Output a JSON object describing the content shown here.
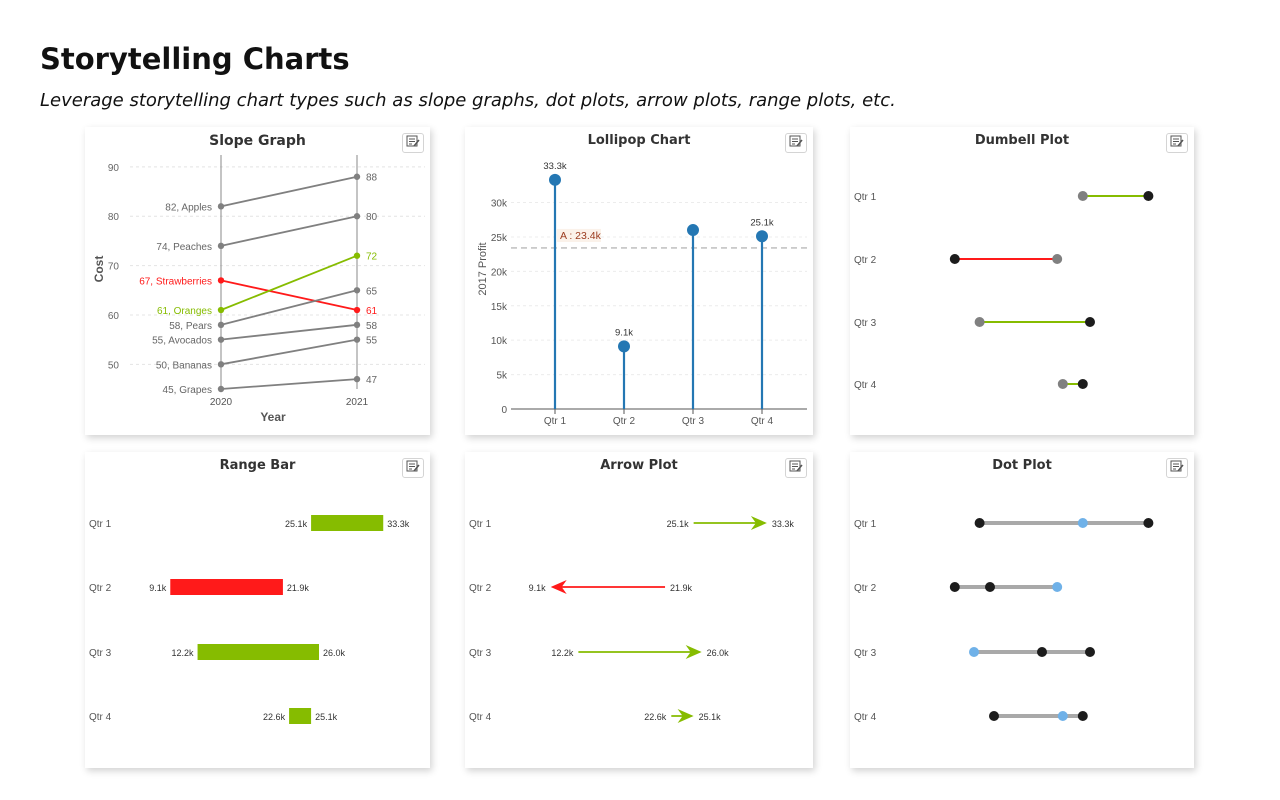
{
  "header": {
    "title": "Storytelling Charts",
    "subtitle": "Leverage storytelling chart types such as slope graphs, dot plots, arrow plots, range plots, etc."
  },
  "colors": {
    "gray": "#808080",
    "green": "#86bc00",
    "red": "#ff1a1a",
    "blue": "#2477b3",
    "dark": "#1c1c1c",
    "lightblue": "#6fb1e8",
    "track": "#a9a9a9"
  },
  "icons": {
    "menu": "chart-menu-icon"
  },
  "chart_data": [
    {
      "id": "slope",
      "type": "line",
      "title": "Slope Graph",
      "xlabel": "Year",
      "ylabel": "Cost",
      "x": [
        "2020",
        "2021"
      ],
      "ylim": [
        45,
        92
      ],
      "yticks": [
        50,
        60,
        70,
        80,
        90
      ],
      "grid": true,
      "series": [
        {
          "name": "Apples",
          "values": [
            82,
            88
          ],
          "label": "82, Apples",
          "color": "gray"
        },
        {
          "name": "Peaches",
          "values": [
            74,
            80
          ],
          "label": "74, Peaches",
          "color": "gray"
        },
        {
          "name": "Strawberries",
          "values": [
            67,
            61
          ],
          "label": "67, Strawberries",
          "color": "red"
        },
        {
          "name": "Oranges",
          "values": [
            61,
            72
          ],
          "label": "61, Oranges",
          "color": "green"
        },
        {
          "name": "Pears",
          "values": [
            58,
            65
          ],
          "label": "58, Pears",
          "color": "gray"
        },
        {
          "name": "Avocados",
          "values": [
            55,
            58
          ],
          "label": "55, Avocados",
          "color": "gray"
        },
        {
          "name": "Bananas",
          "values": [
            50,
            55
          ],
          "label": "50, Bananas",
          "color": "gray"
        },
        {
          "name": "Grapes",
          "values": [
            45,
            47
          ],
          "label": "45, Grapes",
          "color": "gray"
        }
      ]
    },
    {
      "id": "lollipop",
      "type": "bar",
      "title": "Lollipop Chart",
      "xlabel": "",
      "ylabel": "2017 Profit",
      "categories": [
        "Qtr 1",
        "Qtr 2",
        "Qtr 3",
        "Qtr 4"
      ],
      "values": [
        33.3,
        9.1,
        26.0,
        25.1
      ],
      "value_labels": [
        "33.3k",
        "9.1k",
        "",
        "25.1k"
      ],
      "ylim": [
        0,
        34
      ],
      "yticks": [
        0,
        5,
        10,
        15,
        20,
        25,
        30
      ],
      "ytick_labels": [
        "0",
        "5k",
        "10k",
        "15k",
        "20k",
        "25k",
        "30k"
      ],
      "average": {
        "value": 23.4,
        "label": "A : 23.4k"
      },
      "grid": true
    },
    {
      "id": "dumbbell",
      "type": "scatter",
      "title": "Dumbell Plot",
      "categories": [
        "Qtr 1",
        "Qtr 2",
        "Qtr 3",
        "Qtr 4"
      ],
      "start": [
        25.1,
        21.9,
        12.2,
        22.6
      ],
      "end": [
        33.3,
        9.1,
        26.0,
        25.1
      ],
      "xlim": [
        6,
        36
      ]
    },
    {
      "id": "range",
      "type": "bar",
      "title": "Range Bar",
      "categories": [
        "Qtr 1",
        "Qtr 2",
        "Qtr 3",
        "Qtr 4"
      ],
      "low": [
        25.1,
        9.1,
        12.2,
        22.6
      ],
      "high": [
        33.3,
        21.9,
        26.0,
        25.1
      ],
      "low_labels": [
        "25.1k",
        "9.1k",
        "12.2k",
        "22.6k"
      ],
      "high_labels": [
        "33.3k",
        "21.9k",
        "26.0k",
        "25.1k"
      ],
      "colors": [
        "green",
        "red",
        "green",
        "green"
      ],
      "xlim": [
        6,
        36
      ]
    },
    {
      "id": "arrow",
      "type": "line",
      "title": "Arrow Plot",
      "categories": [
        "Qtr 1",
        "Qtr 2",
        "Qtr 3",
        "Qtr 4"
      ],
      "from": [
        25.1,
        21.9,
        12.2,
        22.6
      ],
      "to": [
        33.3,
        9.1,
        26.0,
        25.1
      ],
      "from_labels": [
        "25.1k",
        "21.9k",
        "12.2k",
        "22.6k"
      ],
      "to_labels": [
        "33.3k",
        "9.1k",
        "26.0k",
        "25.1k"
      ],
      "xlim": [
        6,
        36
      ]
    },
    {
      "id": "dot",
      "type": "scatter",
      "title": "Dot Plot",
      "categories": [
        "Qtr 1",
        "Qtr 2",
        "Qtr 3",
        "Qtr 4"
      ],
      "min": [
        12.2,
        9.1,
        11.5,
        14.0
      ],
      "mid": [
        25.1,
        13.5,
        20.0,
        22.6
      ],
      "max": [
        33.3,
        21.9,
        26.0,
        25.1
      ],
      "highlight": [
        25.1,
        21.9,
        11.5,
        22.6
      ],
      "xlim": [
        6,
        36
      ]
    }
  ]
}
